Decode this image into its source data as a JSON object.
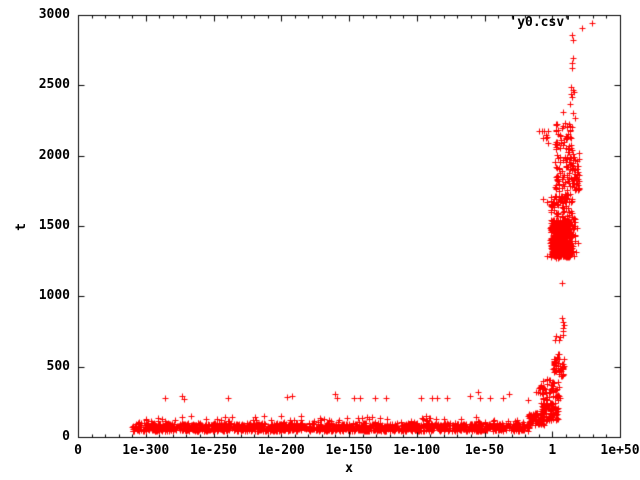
{
  "chart_data": {
    "type": "scatter",
    "title": "",
    "legend": {
      "label": "'y0.csv'",
      "position": "top-right-inside"
    },
    "xlabel": "x",
    "ylabel": "t",
    "bg_color": "#ffffff",
    "border_color": "#000000",
    "grid": false,
    "x_axis": {
      "scale": "log10",
      "range_log10": [
        -350,
        50
      ],
      "minor_tick_step_log10": 10,
      "ticks": [
        {
          "label": "0",
          "xlog": -350
        },
        {
          "label": "1e-300",
          "xlog": -300
        },
        {
          "label": "1e-250",
          "xlog": -250
        },
        {
          "label": "1e-200",
          "xlog": -200
        },
        {
          "label": "1e-150",
          "xlog": -150
        },
        {
          "label": "1e-100",
          "xlog": -100
        },
        {
          "label": "1e-50",
          "xlog": -50
        },
        {
          "label": "1",
          "xlog": 0
        },
        {
          "label": "1e+50",
          "xlog": 50
        }
      ]
    },
    "y_axis": {
      "scale": "linear",
      "range": [
        0,
        3000
      ],
      "ticks": [
        {
          "label": "0",
          "t": 0
        },
        {
          "label": "500",
          "t": 500
        },
        {
          "label": "1000",
          "t": 1000
        },
        {
          "label": "1500",
          "t": 1500
        },
        {
          "label": "2000",
          "t": 2000
        },
        {
          "label": "2500",
          "t": 2500
        },
        {
          "label": "3000",
          "t": 3000
        }
      ]
    },
    "marker": {
      "glyph": "+",
      "color": "#ff0000",
      "size": 7
    },
    "seed": 1337,
    "series": [
      {
        "name": "'y0.csv'",
        "clusters": [
          {
            "note": "dense low band t~40-100 across 1e-310..1e-17",
            "xlog": [
              -310,
              -16.5
            ],
            "t": [
              42,
              98
            ],
            "n": 1400
          },
          {
            "note": "jitter bumps on top of band",
            "xlog": [
              -306,
              -20
            ],
            "t": [
              95,
              148
            ],
            "n": 90
          },
          {
            "note": "knee start rising",
            "xlog": [
              -18,
              -6
            ],
            "t": [
              85,
              175
            ],
            "n": 70
          },
          {
            "note": "knee steeper",
            "xlog": [
              -9,
              4.5
            ],
            "t": [
              115,
              245
            ],
            "n": 90
          },
          {
            "note": "rise t~260-410",
            "xlog": [
              -9,
              6
            ],
            "t": [
              260,
              410
            ],
            "n": 50
          },
          {
            "note": "cluster t~430-590",
            "xlog": [
              0.5,
              8.5
            ],
            "t": [
              430,
              590
            ],
            "n": 45
          },
          {
            "note": "small left cluster t~320-375",
            "xlog": [
              -12,
              -4.4
            ],
            "t": [
              318,
              375
            ],
            "n": 10
          },
          {
            "note": "big dense core t~1280-1545",
            "xlog": [
              -1.5,
              13.5
            ],
            "t": [
              1280,
              1545
            ],
            "n": 420
          },
          {
            "note": "big cluster halo",
            "xlog": [
              1,
              19
            ],
            "t": [
              1270,
              1560
            ],
            "n": 120
          },
          {
            "note": "cluster t~1565-1735",
            "xlog": [
              -1.5,
              14.8
            ],
            "t": [
              1565,
              1735
            ],
            "n": 75
          },
          {
            "note": "cluster t~1750-2040",
            "xlog": [
              2,
              20
            ],
            "t": [
              1750,
              2040
            ],
            "n": 115
          },
          {
            "note": "sparse column t~2040-2230",
            "xlog": [
              2,
              14.8
            ],
            "t": [
              2040,
              2230
            ],
            "n": 45
          },
          {
            "note": "small left cluster t~2085-2180",
            "xlog": [
              -9.6,
              -3
            ],
            "t": [
              2085,
              2180
            ],
            "n": 9
          }
        ],
        "points_xlog_t": [
          [
            -286,
            279
          ],
          [
            -273,
            293
          ],
          [
            -272,
            271
          ],
          [
            -239,
            279
          ],
          [
            -196,
            286
          ],
          [
            -192,
            293
          ],
          [
            -160,
            307
          ],
          [
            -159,
            279
          ],
          [
            -146,
            279
          ],
          [
            -142,
            279
          ],
          [
            -131,
            279
          ],
          [
            -123,
            279
          ],
          [
            -97,
            279
          ],
          [
            -89,
            279
          ],
          [
            -85,
            279
          ],
          [
            -78,
            279
          ],
          [
            -61,
            293
          ],
          [
            -55,
            321
          ],
          [
            -53,
            279
          ],
          [
            -46,
            279
          ],
          [
            -36,
            279
          ],
          [
            -32,
            307
          ],
          [
            -18,
            264
          ],
          [
            2.2,
            690
          ],
          [
            5.2,
            690
          ],
          [
            2.9,
            715
          ],
          [
            5.8,
            713
          ],
          [
            7.4,
            846
          ],
          [
            8.1,
            817
          ],
          [
            8.5,
            796
          ],
          [
            7.8,
            775
          ],
          [
            8.1,
            753
          ],
          [
            7.6,
            728
          ],
          [
            7.4,
            1095
          ],
          [
            -3.7,
            1285
          ],
          [
            4.4,
            1278
          ],
          [
            9.6,
            1284
          ],
          [
            13.3,
            1290
          ],
          [
            16.3,
            1288
          ],
          [
            -6.7,
            1693
          ],
          [
            -3.7,
            1672
          ],
          [
            14,
            2488
          ],
          [
            15.2,
            2467
          ],
          [
            16,
            2453
          ],
          [
            13.7,
            2438
          ],
          [
            14.5,
            2417
          ],
          [
            13,
            2367
          ],
          [
            8.1,
            2310
          ],
          [
            15.5,
            2303
          ],
          [
            17,
            2268
          ],
          [
            9.6,
            2232
          ],
          [
            12,
            2226
          ],
          [
            6,
            2150
          ],
          [
            14.8,
            2858
          ],
          [
            15.5,
            2822
          ],
          [
            22.2,
            2905
          ],
          [
            15.1,
            2694
          ],
          [
            14.4,
            2659
          ],
          [
            14.6,
            2623
          ]
        ]
      }
    ]
  }
}
